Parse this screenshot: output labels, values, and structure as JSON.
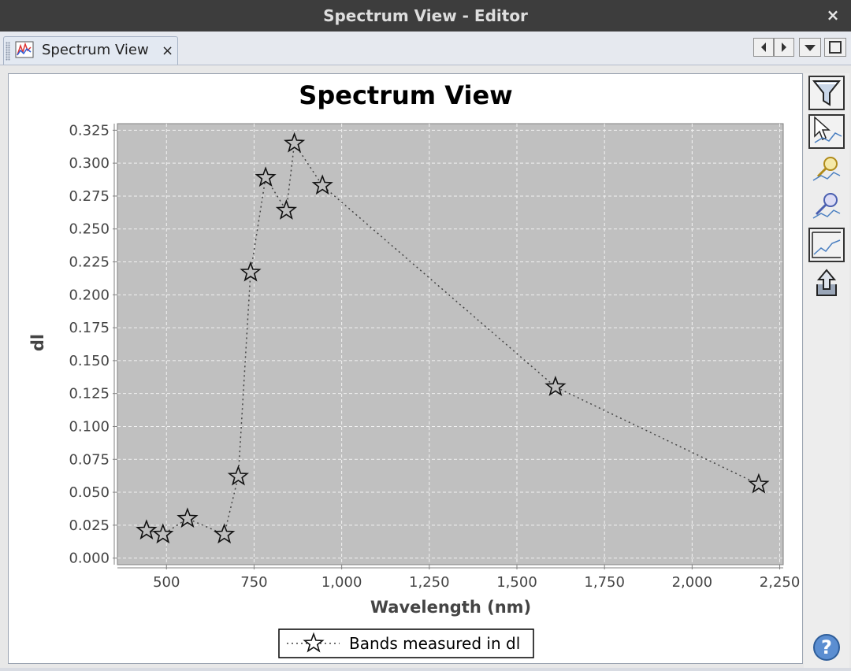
{
  "window": {
    "title": "Spectrum View - Editor",
    "close_label": "×"
  },
  "tab": {
    "label": "Spectrum View",
    "close_label": "×"
  },
  "chart_data": {
    "type": "line",
    "title": "Spectrum View",
    "xlabel": "Wavelength (nm)",
    "ylabel": "dl",
    "xlim": [
      360,
      2260
    ],
    "ylim": [
      -0.005,
      0.33
    ],
    "x_ticks": [
      500,
      750,
      1000,
      1250,
      1500,
      1750,
      2000,
      2250
    ],
    "x_tick_labels": [
      "500",
      "750",
      "1,000",
      "1,250",
      "1,500",
      "1,750",
      "2,000",
      "2,250"
    ],
    "y_ticks": [
      0,
      0.025,
      0.05,
      0.075,
      0.1,
      0.125,
      0.15,
      0.175,
      0.2,
      0.225,
      0.25,
      0.275,
      0.3,
      0.325
    ],
    "y_tick_labels": [
      "0.000",
      "0.025",
      "0.050",
      "0.075",
      "0.100",
      "0.125",
      "0.150",
      "0.175",
      "0.200",
      "0.225",
      "0.250",
      "0.275",
      "0.300",
      "0.325"
    ],
    "grid": true,
    "legend": "bottom-center",
    "series": [
      {
        "name": "Bands measured in dl",
        "marker": "star",
        "line_style": "dotted",
        "x": [
          443,
          490,
          560,
          665,
          705,
          740,
          783,
          842,
          865,
          945,
          1610,
          2190
        ],
        "y": [
          0.021,
          0.018,
          0.03,
          0.018,
          0.062,
          0.217,
          0.289,
          0.264,
          0.315,
          0.283,
          0.13,
          0.056
        ]
      }
    ],
    "colors": {
      "plot_bg": "#c0c0c0",
      "grid": "#f2f2f2",
      "line": "#444444",
      "marker_fill": "#c0c0c0",
      "marker_stroke": "#111111"
    }
  },
  "toolbar": {
    "buttons": [
      {
        "icon": "filter-icon"
      },
      {
        "icon": "cursor-select-icon"
      },
      {
        "icon": "zoom-in-icon"
      },
      {
        "icon": "zoom-out-icon"
      },
      {
        "icon": "chart-line-icon"
      },
      {
        "icon": "export-icon"
      }
    ],
    "help_label": "?"
  }
}
